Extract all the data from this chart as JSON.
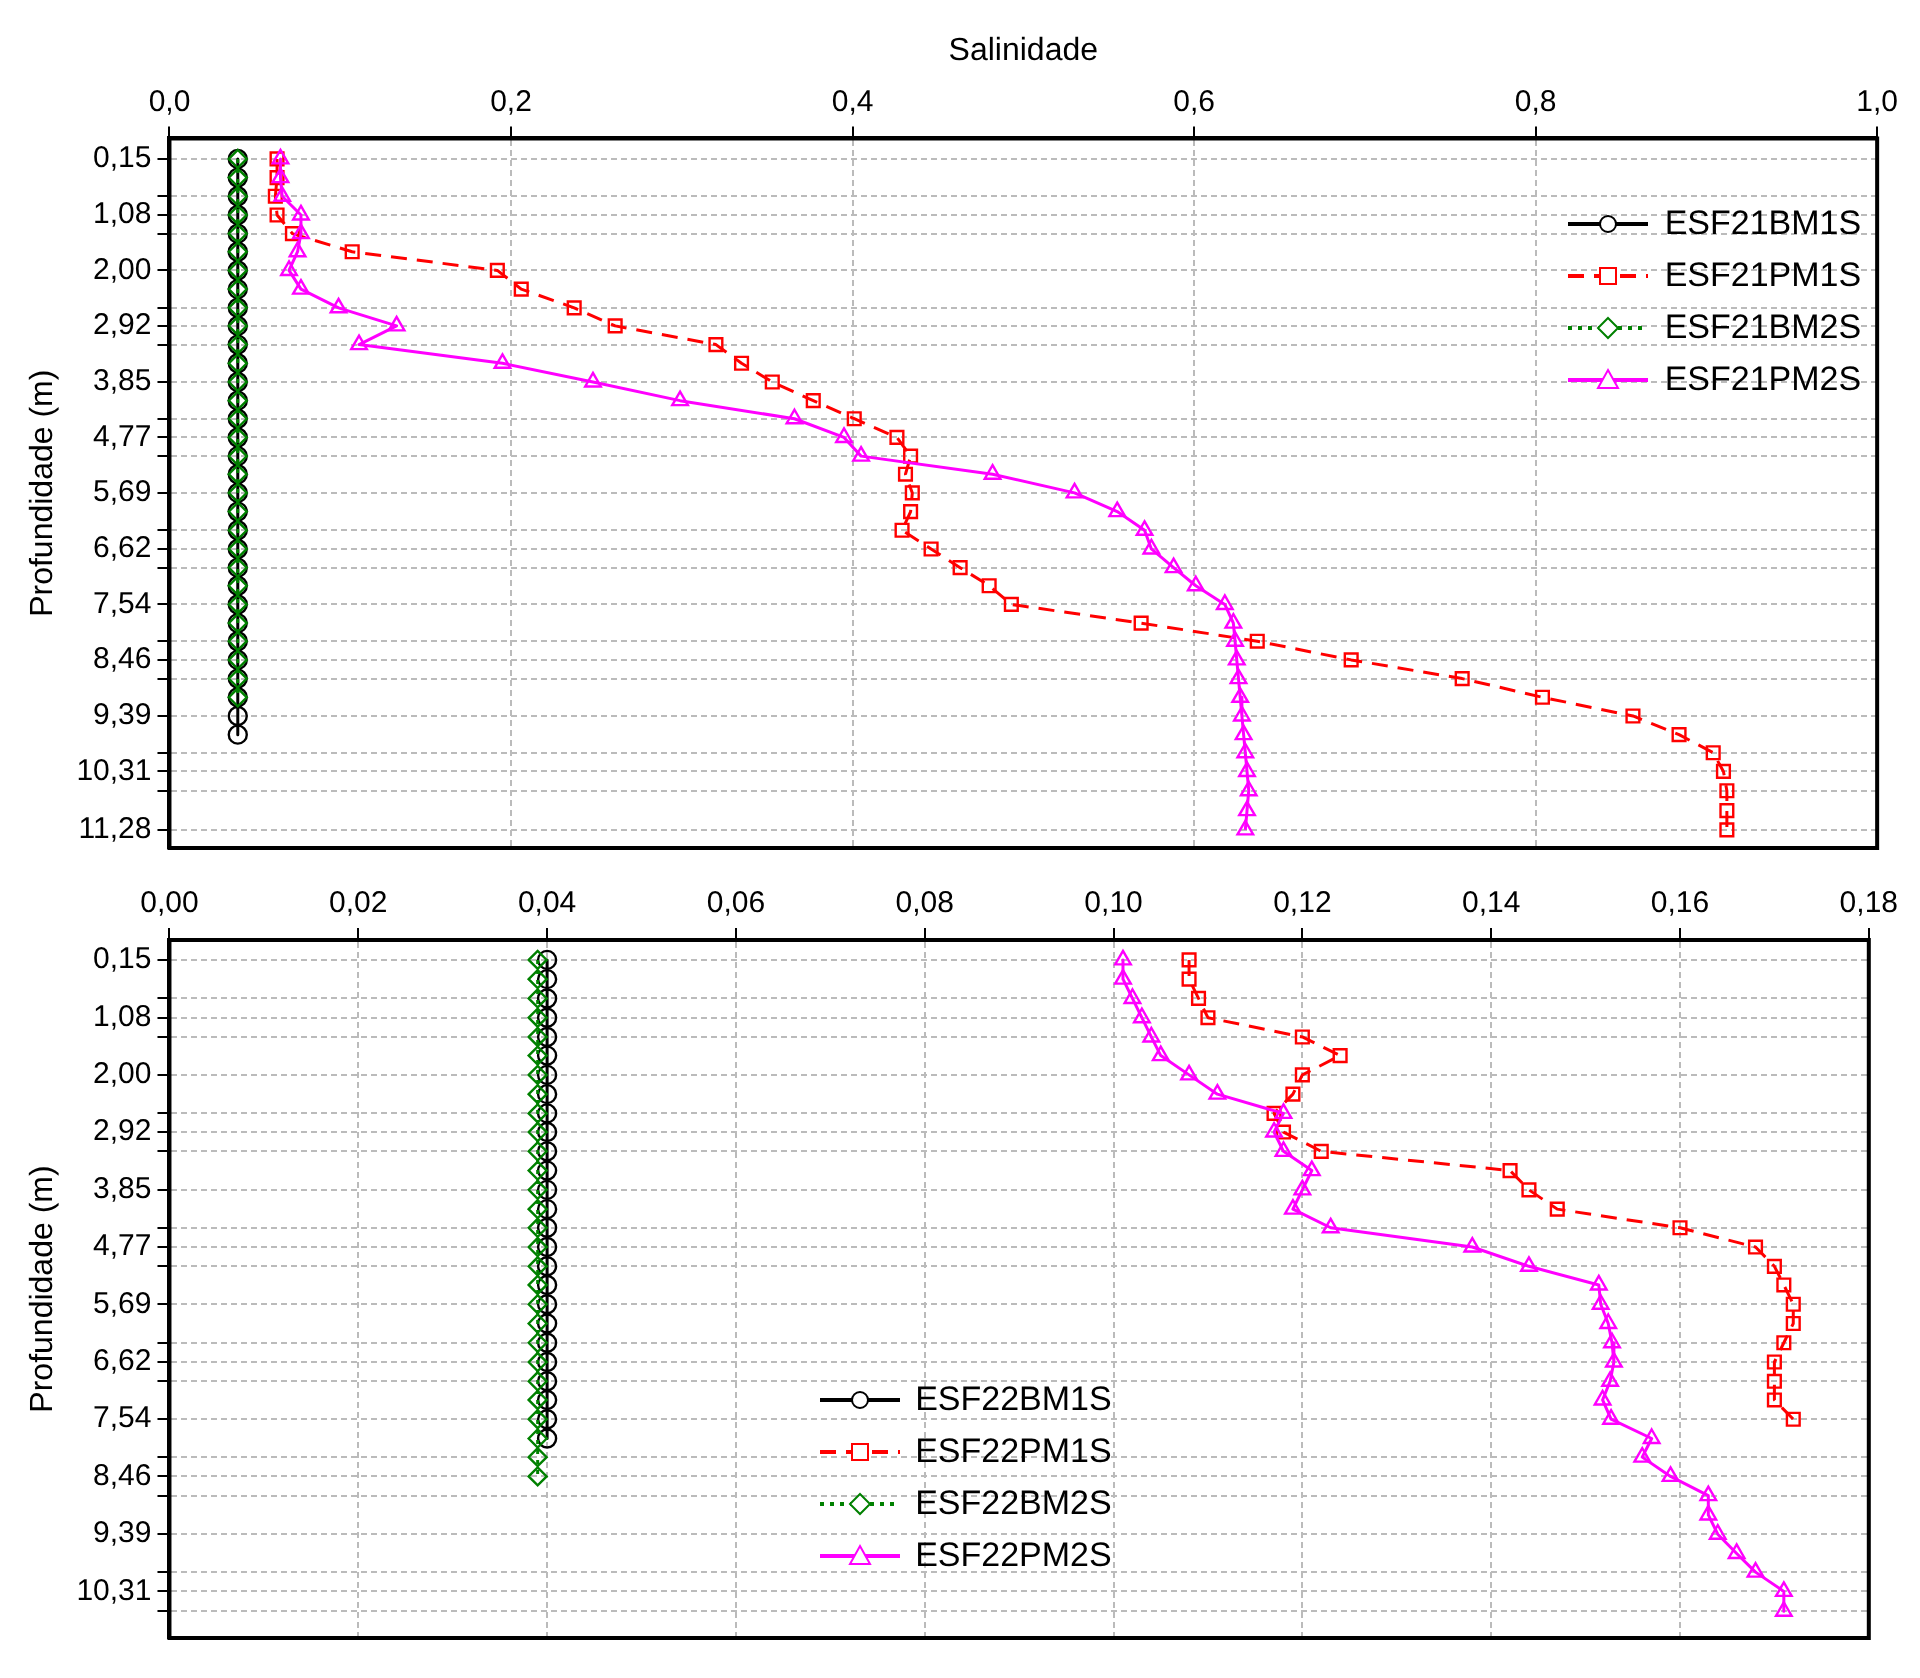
{
  "chart_data": [
    {
      "type": "line",
      "xlabel": "Salinidade",
      "ylabel": "Profundidade (m)",
      "grid": true,
      "legend": "top right",
      "xlim": [
        0,
        1
      ],
      "xticks": [
        {
          "value": 0,
          "label": "0,0"
        },
        {
          "value": 0.2,
          "label": "0,2"
        },
        {
          "value": 0.4,
          "label": "0,4"
        },
        {
          "value": 0.6,
          "label": "0,6"
        },
        {
          "value": 0.8,
          "label": "0,8"
        },
        {
          "value": 1,
          "label": "1,0"
        }
      ],
      "ylim": [
        11.58,
        -0.19
      ],
      "yticks": [
        {
          "value": 0.15,
          "label": "0,15"
        },
        {
          "value": 0.77,
          "label": null
        },
        {
          "value": 1.08,
          "label": "1,08"
        },
        {
          "value": 1.39,
          "label": null
        },
        {
          "value": 2.0,
          "label": "2,00"
        },
        {
          "value": 2.62,
          "label": null
        },
        {
          "value": 2.92,
          "label": "2,92"
        },
        {
          "value": 3.23,
          "label": null
        },
        {
          "value": 3.85,
          "label": "3,85"
        },
        {
          "value": 4.46,
          "label": null
        },
        {
          "value": 4.77,
          "label": "4,77"
        },
        {
          "value": 5.08,
          "label": null
        },
        {
          "value": 5.69,
          "label": "5,69"
        },
        {
          "value": 6.31,
          "label": null
        },
        {
          "value": 6.62,
          "label": "6,62"
        },
        {
          "value": 6.93,
          "label": null
        },
        {
          "value": 7.54,
          "label": "7,54"
        },
        {
          "value": 8.15,
          "label": null
        },
        {
          "value": 8.46,
          "label": "8,46"
        },
        {
          "value": 8.77,
          "label": null
        },
        {
          "value": 9.39,
          "label": "9,39"
        },
        {
          "value": 10.0,
          "label": null
        },
        {
          "value": 10.31,
          "label": "10,31"
        },
        {
          "value": 10.63,
          "label": null
        },
        {
          "value": 11.28,
          "label": "11,28"
        }
      ],
      "series": [
        {
          "name": "ESF21BM1S",
          "color": "#000000",
          "marker": "circle",
          "line_style": "solid",
          "x": [
            0.04,
            0.04,
            0.04,
            0.04,
            0.04,
            0.04,
            0.04,
            0.04,
            0.04,
            0.04,
            0.04,
            0.04,
            0.04,
            0.04,
            0.04,
            0.04,
            0.04,
            0.04,
            0.04,
            0.04,
            0.04,
            0.04,
            0.04,
            0.04,
            0.04,
            0.04,
            0.04,
            0.04,
            0.04,
            0.04,
            0.04,
            0.04
          ],
          "values": [
            0.15,
            0.46,
            0.77,
            1.08,
            1.39,
            1.69,
            2.0,
            2.31,
            2.62,
            2.92,
            3.23,
            3.54,
            3.85,
            4.16,
            4.46,
            4.77,
            5.08,
            5.38,
            5.69,
            6.0,
            6.31,
            6.62,
            6.93,
            7.23,
            7.54,
            7.85,
            8.15,
            8.46,
            8.77,
            9.08,
            9.39,
            9.7
          ]
        },
        {
          "name": "ESF21PM1S",
          "color": "#ff0000",
          "marker": "square",
          "line_style": "dashed",
          "x": [
            0.063,
            0.063,
            0.062,
            0.063,
            0.072,
            0.107,
            0.192,
            0.206,
            0.237,
            0.261,
            0.32,
            0.335,
            0.353,
            0.377,
            0.401,
            0.426,
            0.434,
            0.431,
            0.435,
            0.434,
            0.429,
            0.446,
            0.463,
            0.48,
            0.493,
            0.569,
            0.637,
            0.692,
            0.757,
            0.804,
            0.857,
            0.884,
            0.904,
            0.91,
            0.912,
            0.912,
            0.912
          ],
          "values": [
            0.15,
            0.46,
            0.77,
            1.08,
            1.39,
            1.69,
            2.0,
            2.31,
            2.62,
            2.92,
            3.23,
            3.54,
            3.85,
            4.16,
            4.46,
            4.77,
            5.08,
            5.38,
            5.69,
            6.0,
            6.31,
            6.62,
            6.93,
            7.23,
            7.54,
            7.85,
            8.15,
            8.46,
            8.77,
            9.08,
            9.39,
            9.7,
            10.0,
            10.31,
            10.63,
            10.96,
            11.28
          ]
        },
        {
          "name": "ESF21BM2S",
          "color": "#008000",
          "marker": "diamond",
          "line_style": "dotted",
          "x": [
            0.04,
            0.04,
            0.04,
            0.04,
            0.04,
            0.04,
            0.04,
            0.04,
            0.04,
            0.04,
            0.04,
            0.04,
            0.04,
            0.04,
            0.04,
            0.04,
            0.04,
            0.04,
            0.04,
            0.04,
            0.04,
            0.04,
            0.04,
            0.04,
            0.04,
            0.04,
            0.04,
            0.04,
            0.04,
            0.04
          ],
          "values": [
            0.15,
            0.46,
            0.77,
            1.08,
            1.39,
            1.69,
            2.0,
            2.31,
            2.62,
            2.92,
            3.23,
            3.54,
            3.85,
            4.16,
            4.46,
            4.77,
            5.08,
            5.38,
            5.69,
            6.0,
            6.31,
            6.62,
            6.93,
            7.23,
            7.54,
            7.85,
            8.15,
            8.46,
            8.77,
            9.08
          ]
        },
        {
          "name": "ESF21PM2S",
          "color": "#ff00ff",
          "marker": "triangle",
          "line_style": "solid",
          "x": [
            0.065,
            0.065,
            0.066,
            0.077,
            0.077,
            0.075,
            0.07,
            0.077,
            0.099,
            0.133,
            0.111,
            0.195,
            0.248,
            0.299,
            0.366,
            0.395,
            0.405,
            0.482,
            0.53,
            0.555,
            0.571,
            0.575,
            0.588,
            0.601,
            0.618,
            0.623,
            0.624,
            0.625,
            0.626,
            0.627,
            0.628,
            0.629,
            0.63,
            0.631,
            0.632,
            0.631,
            0.63
          ],
          "values": [
            0.15,
            0.46,
            0.77,
            1.08,
            1.39,
            1.69,
            2.0,
            2.31,
            2.62,
            2.92,
            3.23,
            3.54,
            3.85,
            4.16,
            4.46,
            4.77,
            5.08,
            5.38,
            5.69,
            6.0,
            6.31,
            6.62,
            6.93,
            7.23,
            7.54,
            7.85,
            8.15,
            8.46,
            8.77,
            9.08,
            9.39,
            9.7,
            10.0,
            10.31,
            10.63,
            10.96,
            11.28
          ]
        }
      ]
    },
    {
      "type": "line",
      "ylabel": "Profundidade (m)",
      "grid": true,
      "legend": "bottom",
      "xlim": [
        0,
        0.18
      ],
      "xticks": [
        {
          "value": 0,
          "label": "0,00"
        },
        {
          "value": 0.02,
          "label": "0,02"
        },
        {
          "value": 0.04,
          "label": "0,04"
        },
        {
          "value": 0.06,
          "label": "0,06"
        },
        {
          "value": 0.08,
          "label": "0,08"
        },
        {
          "value": 0.1,
          "label": "0,10"
        },
        {
          "value": 0.12,
          "label": "0,12"
        },
        {
          "value": 0.14,
          "label": "0,14"
        },
        {
          "value": 0.16,
          "label": "0,16"
        },
        {
          "value": 0.18,
          "label": "0,18"
        }
      ],
      "ylim": [
        11.06,
        -0.17
      ],
      "yticks": [
        {
          "value": 0.15,
          "label": "0,15"
        },
        {
          "value": 0.77,
          "label": null
        },
        {
          "value": 1.08,
          "label": "1,08"
        },
        {
          "value": 1.39,
          "label": null
        },
        {
          "value": 2.0,
          "label": "2,00"
        },
        {
          "value": 2.62,
          "label": null
        },
        {
          "value": 2.92,
          "label": "2,92"
        },
        {
          "value": 3.23,
          "label": null
        },
        {
          "value": 3.85,
          "label": "3,85"
        },
        {
          "value": 4.46,
          "label": null
        },
        {
          "value": 4.77,
          "label": "4,77"
        },
        {
          "value": 5.08,
          "label": null
        },
        {
          "value": 5.69,
          "label": "5,69"
        },
        {
          "value": 6.31,
          "label": null
        },
        {
          "value": 6.62,
          "label": "6,62"
        },
        {
          "value": 6.93,
          "label": null
        },
        {
          "value": 7.54,
          "label": "7,54"
        },
        {
          "value": 8.15,
          "label": null
        },
        {
          "value": 8.46,
          "label": "8,46"
        },
        {
          "value": 8.77,
          "label": null
        },
        {
          "value": 9.39,
          "label": "9,39"
        },
        {
          "value": 10.0,
          "label": null
        },
        {
          "value": 10.31,
          "label": "10,31"
        },
        {
          "value": 10.63,
          "label": null
        }
      ],
      "series": [
        {
          "name": "ESF22BM1S",
          "color": "#000000",
          "marker": "circle",
          "line_style": "solid",
          "x": [
            0.04,
            0.04,
            0.04,
            0.04,
            0.04,
            0.04,
            0.04,
            0.04,
            0.04,
            0.04,
            0.04,
            0.04,
            0.04,
            0.04,
            0.04,
            0.04,
            0.04,
            0.04,
            0.04,
            0.04,
            0.04,
            0.04,
            0.04,
            0.04,
            0.04,
            0.04
          ],
          "values": [
            0.15,
            0.46,
            0.77,
            1.08,
            1.39,
            1.69,
            2.0,
            2.31,
            2.62,
            2.92,
            3.23,
            3.54,
            3.85,
            4.16,
            4.46,
            4.77,
            5.08,
            5.38,
            5.69,
            6.0,
            6.31,
            6.62,
            6.93,
            7.23,
            7.54,
            7.85
          ]
        },
        {
          "name": "ESF22PM1S",
          "color": "#ff0000",
          "marker": "square",
          "line_style": "dashed",
          "x": [
            0.108,
            0.108,
            0.109,
            0.11,
            0.12,
            0.124,
            0.12,
            0.119,
            0.117,
            0.118,
            0.122,
            0.142,
            0.144,
            0.147,
            0.16,
            0.168,
            0.17,
            0.171,
            0.172,
            0.172,
            0.171,
            0.17,
            0.17,
            0.17,
            0.172
          ],
          "values": [
            0.15,
            0.46,
            0.77,
            1.08,
            1.39,
            1.69,
            2.0,
            2.31,
            2.62,
            2.92,
            3.23,
            3.54,
            3.85,
            4.16,
            4.46,
            4.77,
            5.08,
            5.38,
            5.69,
            6.0,
            6.31,
            6.62,
            6.93,
            7.23,
            7.54
          ]
        },
        {
          "name": "ESF22BM2S",
          "color": "#008000",
          "marker": "diamond",
          "line_style": "dotted",
          "x": [
            0.039,
            0.039,
            0.039,
            0.039,
            0.039,
            0.039,
            0.039,
            0.039,
            0.039,
            0.039,
            0.039,
            0.039,
            0.039,
            0.039,
            0.039,
            0.039,
            0.039,
            0.039,
            0.039,
            0.039,
            0.039,
            0.039,
            0.039,
            0.039,
            0.039,
            0.039,
            0.039,
            0.039
          ],
          "values": [
            0.15,
            0.46,
            0.77,
            1.08,
            1.39,
            1.69,
            2.0,
            2.31,
            2.62,
            2.92,
            3.23,
            3.54,
            3.85,
            4.16,
            4.46,
            4.77,
            5.08,
            5.38,
            5.69,
            6.0,
            6.31,
            6.62,
            6.93,
            7.23,
            7.54,
            7.85,
            8.15,
            8.46
          ]
        },
        {
          "name": "ESF22PM2S",
          "color": "#ff00ff",
          "marker": "triangle",
          "line_style": "solid",
          "x": [
            0.101,
            0.101,
            0.102,
            0.103,
            0.104,
            0.105,
            0.108,
            0.111,
            0.118,
            0.117,
            0.118,
            0.121,
            0.12,
            0.119,
            0.123,
            0.138,
            0.144,
            0.1514,
            0.1516,
            0.1524,
            0.1528,
            0.153,
            0.1526,
            0.1518,
            0.1527,
            0.157,
            0.156,
            0.159,
            0.163,
            0.163,
            0.164,
            0.166,
            0.168,
            0.171,
            0.171
          ],
          "values": [
            0.15,
            0.46,
            0.77,
            1.08,
            1.39,
            1.69,
            2.0,
            2.31,
            2.62,
            2.92,
            3.23,
            3.54,
            3.85,
            4.16,
            4.46,
            4.77,
            5.08,
            5.38,
            5.69,
            6.0,
            6.31,
            6.62,
            6.93,
            7.23,
            7.54,
            7.85,
            8.15,
            8.46,
            8.77,
            9.08,
            9.39,
            9.7,
            10.0,
            10.31,
            10.63
          ]
        }
      ]
    }
  ]
}
